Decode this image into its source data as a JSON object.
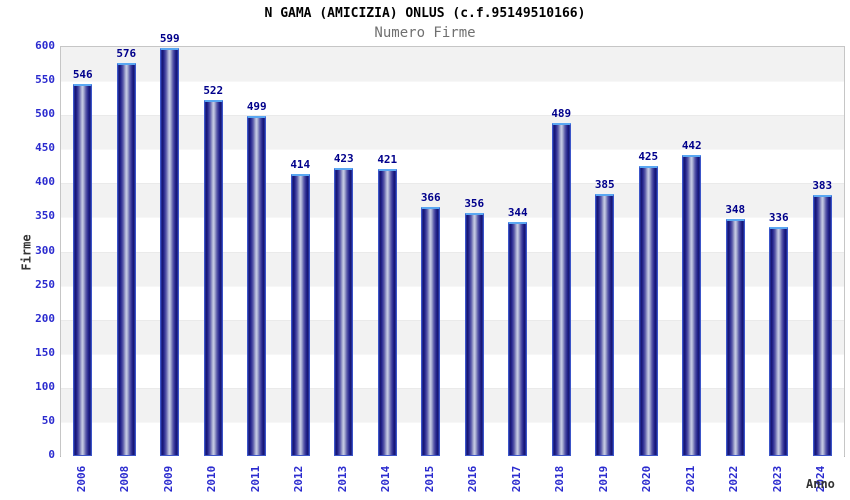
{
  "chart_data": {
    "type": "bar",
    "title": "N GAMA (AMICIZIA) ONLUS (c.f.95149510166)",
    "subtitle": "Numero Firme",
    "xlabel": "Anno",
    "ylabel": "Firme",
    "categories": [
      "2006",
      "2008",
      "2009",
      "2010",
      "2011",
      "2012",
      "2013",
      "2014",
      "2015",
      "2016",
      "2017",
      "2018",
      "2019",
      "2020",
      "2021",
      "2022",
      "2023",
      "2024"
    ],
    "values": [
      546,
      576,
      599,
      522,
      499,
      414,
      423,
      421,
      366,
      356,
      344,
      489,
      385,
      425,
      442,
      348,
      336,
      383
    ],
    "ylim": [
      0,
      600
    ],
    "ytick_step": 50,
    "yticks": [
      "0",
      "50",
      "100",
      "150",
      "200",
      "250",
      "300",
      "350",
      "400",
      "450",
      "500",
      "550",
      "600"
    ],
    "grid": "horizontal-alternating-bands",
    "legend": "none",
    "colors": {
      "bar_dark_navy": "#15156e",
      "bar_mid_blue": "#23238c",
      "bar_highlight": "#c9cce6",
      "bar_outline_top": "#5aa7f2",
      "value_label_navy": "#00008b",
      "tick_label_blue": "#2b2bcf",
      "band_gray": "#f2f2f2",
      "band_white": "#ffffff",
      "subtitle_gray": "#707070",
      "axis_title_gray": "#333333"
    }
  }
}
